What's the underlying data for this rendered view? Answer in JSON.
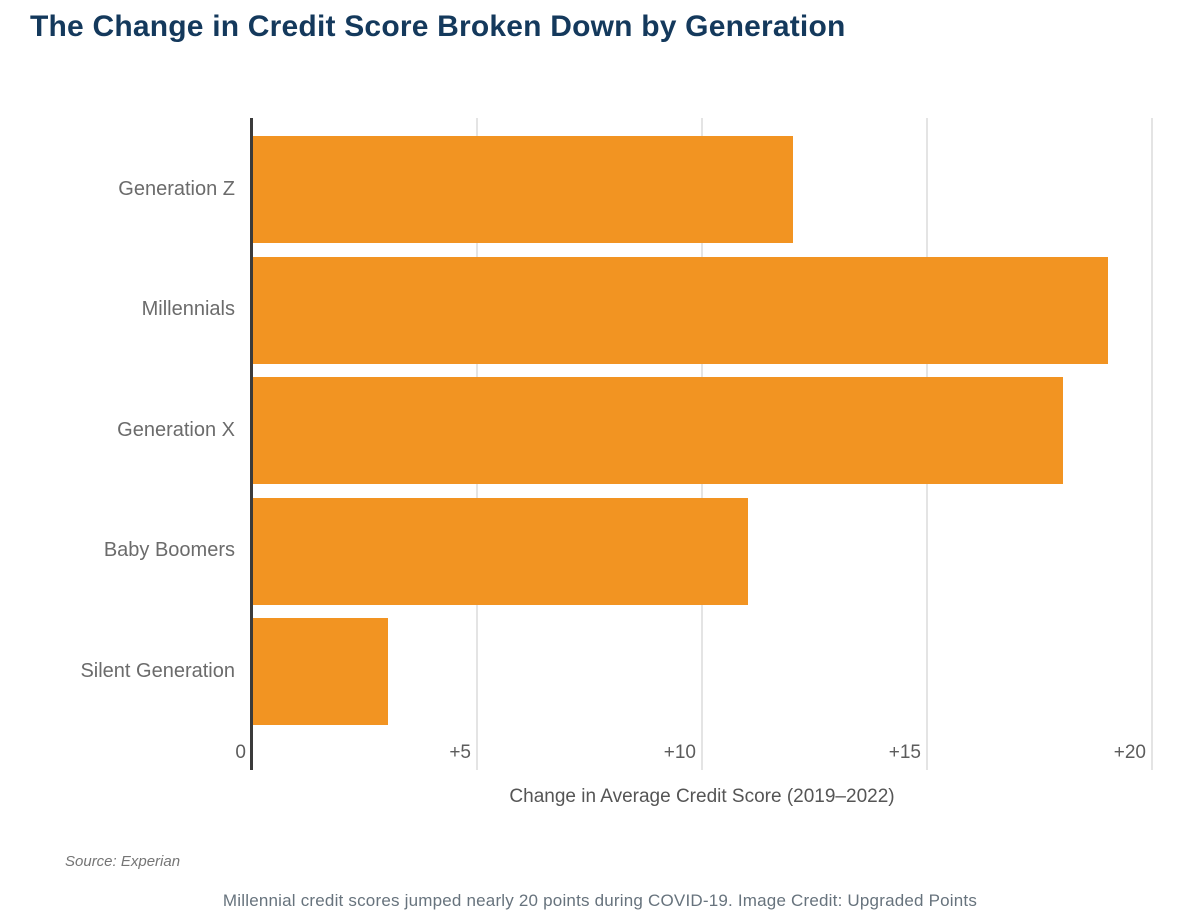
{
  "page": {
    "title": "The Change in Credit Score Broken Down by Generation",
    "source_note": "Source: Experian",
    "caption": "Millennial credit scores jumped nearly 20 points during COVID-19. Image Credit: Upgraded Points"
  },
  "colors": {
    "bar": "#F29422",
    "title_text": "#14395C",
    "axis_line": "#3B3B3B",
    "gridline": "#E4E4E4",
    "category_label_text": "#6B6B6B",
    "tick_label_text": "#5C5C5C",
    "caption_text": "#67737D"
  },
  "chart_data": {
    "type": "bar",
    "orientation": "horizontal",
    "title": "The Change in Credit Score Broken Down by Generation",
    "categories": [
      "Generation Z",
      "Millennials",
      "Generation X",
      "Baby Boomers",
      "Silent Generation"
    ],
    "values": [
      12,
      19,
      18,
      11,
      3
    ],
    "xlabel": "Change in Average Credit Score (2019–2022)",
    "ylabel": "",
    "xlim": [
      0,
      20
    ],
    "xticks": [
      {
        "value": 0,
        "label": "0"
      },
      {
        "value": 5,
        "label": "+5"
      },
      {
        "value": 10,
        "label": "+10"
      },
      {
        "value": 15,
        "label": "+15"
      },
      {
        "value": 20,
        "label": "+20"
      }
    ],
    "grid": "vertical",
    "legend": "none"
  }
}
